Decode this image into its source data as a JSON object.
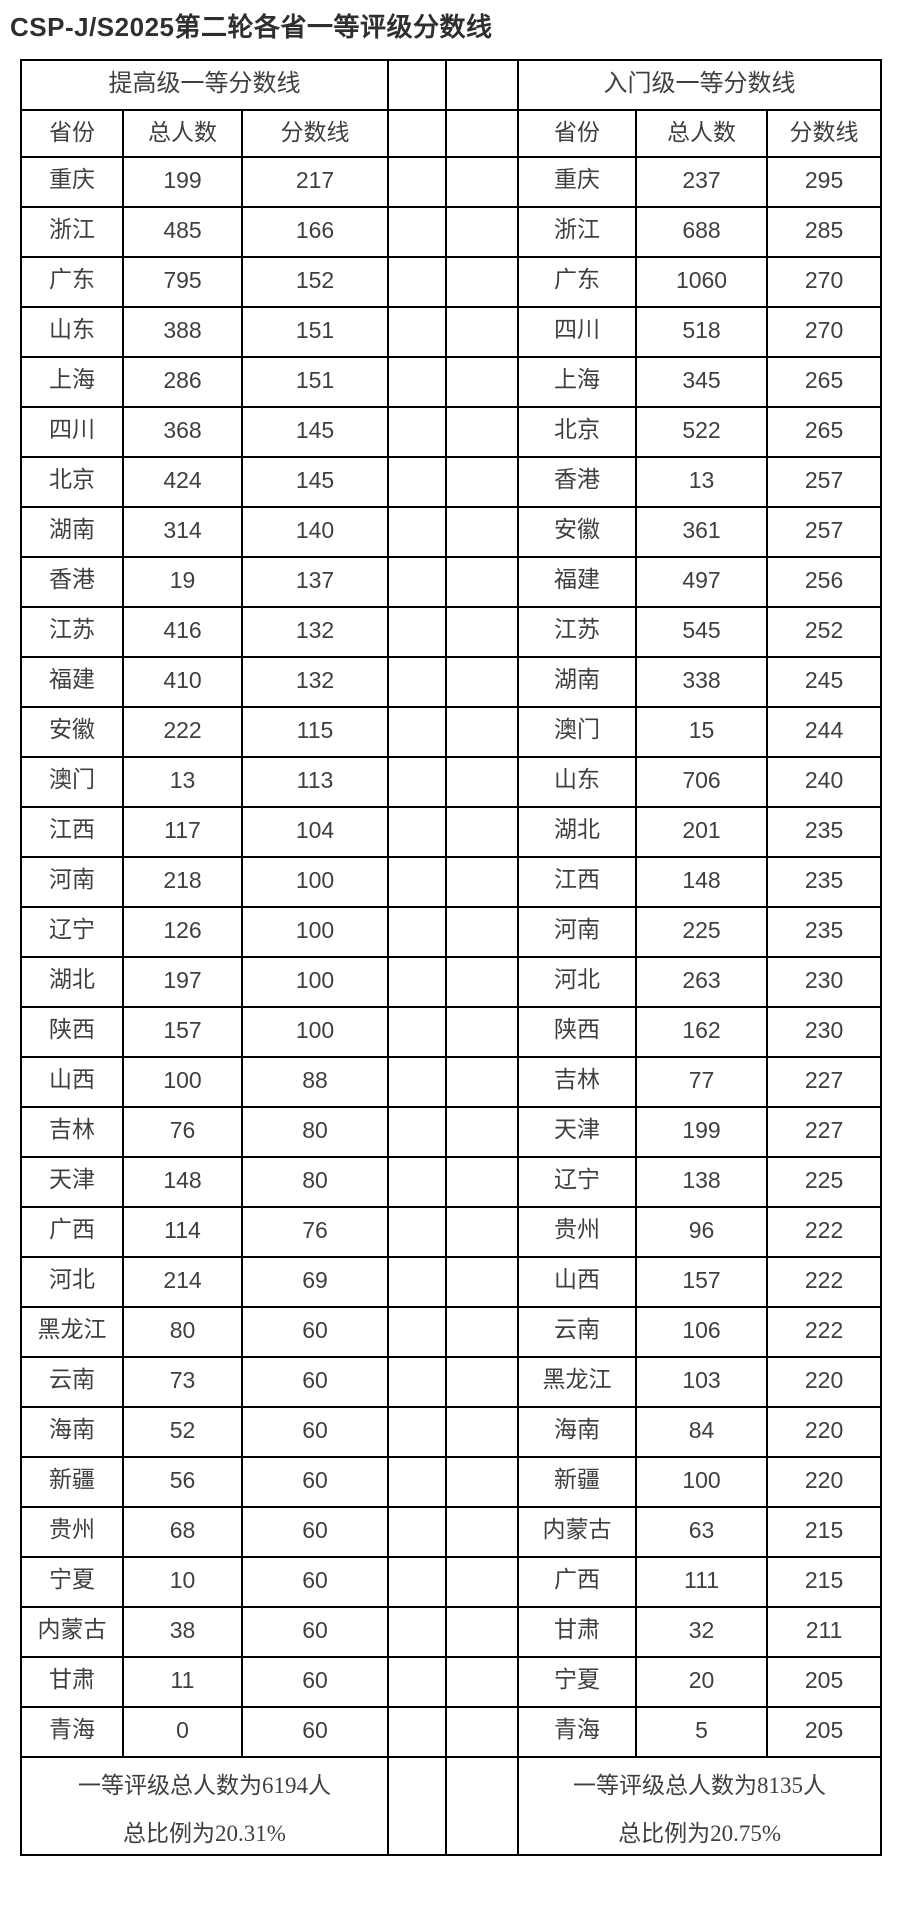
{
  "title": "CSP-J/S2025第二轮各省一等评级分数线",
  "left": {
    "group_header": "提高级一等分数线",
    "columns": [
      "省份",
      "总人数",
      "分数线"
    ],
    "rows": [
      [
        "重庆",
        "199",
        "217"
      ],
      [
        "浙江",
        "485",
        "166"
      ],
      [
        "广东",
        "795",
        "152"
      ],
      [
        "山东",
        "388",
        "151"
      ],
      [
        "上海",
        "286",
        "151"
      ],
      [
        "四川",
        "368",
        "145"
      ],
      [
        "北京",
        "424",
        "145"
      ],
      [
        "湖南",
        "314",
        "140"
      ],
      [
        "香港",
        "19",
        "137"
      ],
      [
        "江苏",
        "416",
        "132"
      ],
      [
        "福建",
        "410",
        "132"
      ],
      [
        "安徽",
        "222",
        "115"
      ],
      [
        "澳门",
        "13",
        "113"
      ],
      [
        "江西",
        "117",
        "104"
      ],
      [
        "河南",
        "218",
        "100"
      ],
      [
        "辽宁",
        "126",
        "100"
      ],
      [
        "湖北",
        "197",
        "100"
      ],
      [
        "陕西",
        "157",
        "100"
      ],
      [
        "山西",
        "100",
        "88"
      ],
      [
        "吉林",
        "76",
        "80"
      ],
      [
        "天津",
        "148",
        "80"
      ],
      [
        "广西",
        "114",
        "76"
      ],
      [
        "河北",
        "214",
        "69"
      ],
      [
        "黑龙江",
        "80",
        "60"
      ],
      [
        "云南",
        "73",
        "60"
      ],
      [
        "海南",
        "52",
        "60"
      ],
      [
        "新疆",
        "56",
        "60"
      ],
      [
        "贵州",
        "68",
        "60"
      ],
      [
        "宁夏",
        "10",
        "60"
      ],
      [
        "内蒙古",
        "38",
        "60"
      ],
      [
        "甘肃",
        "11",
        "60"
      ],
      [
        "青海",
        "0",
        "60"
      ]
    ],
    "footer_line1": "一等评级总人数为6194人",
    "footer_line2": "总比例为20.31%"
  },
  "right": {
    "group_header": "入门级一等分数线",
    "columns": [
      "省份",
      "总人数",
      "分数线"
    ],
    "rows": [
      [
        "重庆",
        "237",
        "295"
      ],
      [
        "浙江",
        "688",
        "285"
      ],
      [
        "广东",
        "1060",
        "270"
      ],
      [
        "四川",
        "518",
        "270"
      ],
      [
        "上海",
        "345",
        "265"
      ],
      [
        "北京",
        "522",
        "265"
      ],
      [
        "香港",
        "13",
        "257"
      ],
      [
        "安徽",
        "361",
        "257"
      ],
      [
        "福建",
        "497",
        "256"
      ],
      [
        "江苏",
        "545",
        "252"
      ],
      [
        "湖南",
        "338",
        "245"
      ],
      [
        "澳门",
        "15",
        "244"
      ],
      [
        "山东",
        "706",
        "240"
      ],
      [
        "湖北",
        "201",
        "235"
      ],
      [
        "江西",
        "148",
        "235"
      ],
      [
        "河南",
        "225",
        "235"
      ],
      [
        "河北",
        "263",
        "230"
      ],
      [
        "陕西",
        "162",
        "230"
      ],
      [
        "吉林",
        "77",
        "227"
      ],
      [
        "天津",
        "199",
        "227"
      ],
      [
        "辽宁",
        "138",
        "225"
      ],
      [
        "贵州",
        "96",
        "222"
      ],
      [
        "山西",
        "157",
        "222"
      ],
      [
        "云南",
        "106",
        "222"
      ],
      [
        "黑龙江",
        "103",
        "220"
      ],
      [
        "海南",
        "84",
        "220"
      ],
      [
        "新疆",
        "100",
        "220"
      ],
      [
        "内蒙古",
        "63",
        "215"
      ],
      [
        "广西",
        "111",
        "215"
      ],
      [
        "甘肃",
        "32",
        "211"
      ],
      [
        "宁夏",
        "20",
        "205"
      ],
      [
        "青海",
        "5",
        "205"
      ]
    ],
    "footer_line1": "一等评级总人数为8135人",
    "footer_line2": "总比例为20.75%"
  }
}
